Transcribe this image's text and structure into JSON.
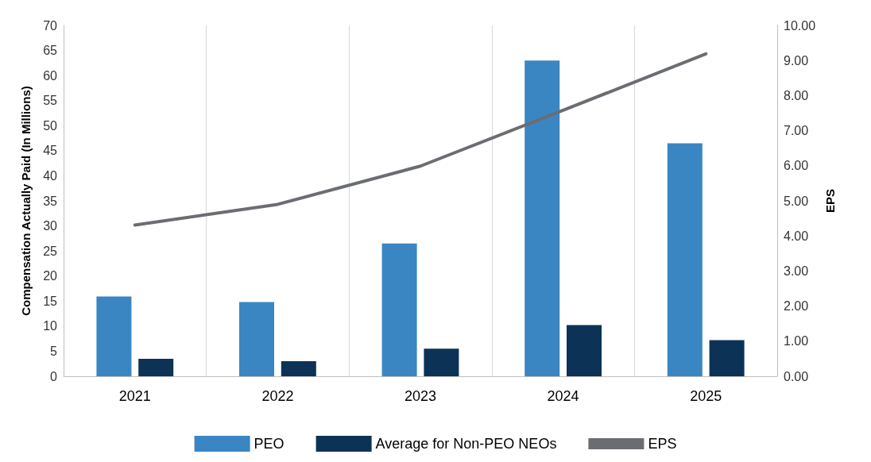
{
  "chart_data": {
    "type": "bar",
    "categories": [
      "2021",
      "2022",
      "2023",
      "2024",
      "2025"
    ],
    "ylabel": "Compensation Actually Paid (In Millions)",
    "y2label": "EPS",
    "series": [
      {
        "name": "PEO",
        "color": "#3a86c3",
        "values": [
          15.9,
          14.8,
          26.5,
          63.0,
          46.5
        ]
      },
      {
        "name": "Average for Non-PEO NEOs",
        "color": "#0c3256",
        "values": [
          3.5,
          3.0,
          5.5,
          10.2,
          7.2
        ]
      },
      {
        "name": "EPS",
        "type": "line",
        "axis": "y2",
        "color": "#6a6d72",
        "values": [
          4.31,
          4.9,
          5.99,
          7.58,
          9.19
        ]
      }
    ],
    "ylim": [
      0,
      70
    ],
    "yticks": [
      0,
      5,
      10,
      15,
      20,
      25,
      30,
      35,
      40,
      45,
      50,
      55,
      60,
      65,
      70
    ],
    "y2lim": [
      0,
      10
    ],
    "y2ticks": [
      {
        "value": 0,
        "label": "0.00"
      },
      {
        "value": 1,
        "label": "1.00"
      },
      {
        "value": 2,
        "label": "2.00"
      },
      {
        "value": 3,
        "label": "3.00"
      },
      {
        "value": 4,
        "label": "4.00"
      },
      {
        "value": 5,
        "label": "5.00"
      },
      {
        "value": 6,
        "label": "6.00"
      },
      {
        "value": 7,
        "label": "7.00"
      },
      {
        "value": 8,
        "label": "8.00"
      },
      {
        "value": 9,
        "label": "9.00"
      },
      {
        "value": 10,
        "label": "10.00"
      }
    ],
    "grid": "x",
    "legend": "bottom",
    "marker": "none",
    "line_style": "solid"
  }
}
